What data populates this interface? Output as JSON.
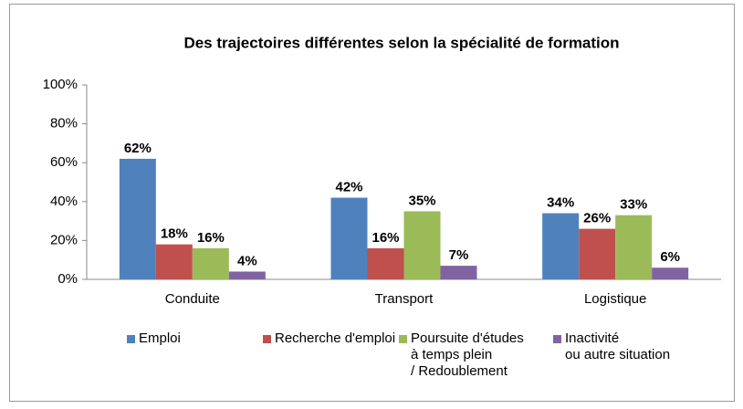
{
  "chart_data": {
    "type": "bar",
    "title": "Des trajectoires différentes selon la spécialité de formation",
    "categories": [
      "Conduite",
      "Transport",
      "Logistique"
    ],
    "series": [
      {
        "name": "Emploi",
        "color": "#4f81bd",
        "values": [
          62,
          42,
          34
        ],
        "value_labels": [
          "62%",
          "42%",
          "34%"
        ]
      },
      {
        "name": "Recherche d'emploi",
        "color": "#c0504d",
        "values": [
          18,
          16,
          26
        ],
        "value_labels": [
          "18%",
          "16%",
          "26%"
        ]
      },
      {
        "name": "Poursuite d'études\nà temps plein\n/ Redoublement",
        "color": "#9bbb59",
        "values": [
          16,
          35,
          33
        ],
        "value_labels": [
          "16%",
          "35%",
          "33%"
        ]
      },
      {
        "name": "Inactivité\nou autre situation",
        "color": "#8064a2",
        "values": [
          4,
          7,
          6
        ],
        "value_labels": [
          "4%",
          "7%",
          "6%"
        ]
      }
    ],
    "ylim": [
      0,
      100
    ],
    "yticks": [
      {
        "value": 0,
        "label": "0%"
      },
      {
        "value": 20,
        "label": "20%"
      },
      {
        "value": 40,
        "label": "40%"
      },
      {
        "value": 60,
        "label": "60%"
      },
      {
        "value": 80,
        "label": "80%"
      },
      {
        "value": 100,
        "label": "100%"
      }
    ],
    "grid": false,
    "legend": "bottom"
  }
}
